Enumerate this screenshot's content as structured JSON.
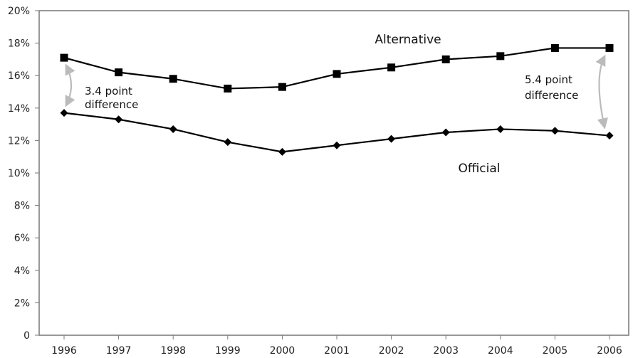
{
  "chart_data": {
    "type": "line",
    "x": [
      1996,
      1997,
      1998,
      1999,
      2000,
      2001,
      2002,
      2003,
      2004,
      2005,
      2006
    ],
    "series": [
      {
        "name": "Alternative",
        "values": [
          17.1,
          16.2,
          15.8,
          15.2,
          15.3,
          16.1,
          16.5,
          17.0,
          17.2,
          17.7,
          17.7
        ],
        "marker": "square"
      },
      {
        "name": "Official",
        "values": [
          13.7,
          13.3,
          12.7,
          11.9,
          11.3,
          11.7,
          12.1,
          12.5,
          12.7,
          12.6,
          12.3
        ],
        "marker": "diamond"
      }
    ],
    "ylim": [
      0,
      20
    ],
    "y_ticks": [
      0,
      2,
      4,
      6,
      8,
      10,
      12,
      14,
      16,
      18,
      20
    ],
    "y_tick_labels": [
      "0",
      "2%",
      "4%",
      "6%",
      "8%",
      "10%",
      "12%",
      "14%",
      "16%",
      "18%",
      "20%"
    ],
    "x_tick_labels": [
      "1996",
      "1997",
      "1998",
      "1999",
      "2000",
      "2001",
      "2002",
      "2003",
      "2004",
      "2005",
      "2006"
    ],
    "annotations": [
      {
        "lines": [
          "3.4 point",
          "difference"
        ],
        "year": 1996
      },
      {
        "lines": [
          "5.4 point",
          "difference"
        ],
        "year": 2006
      }
    ],
    "grid": false,
    "colors": {
      "line": "#000000",
      "arrow": "#bbbbbb",
      "frame": "#777777"
    }
  }
}
